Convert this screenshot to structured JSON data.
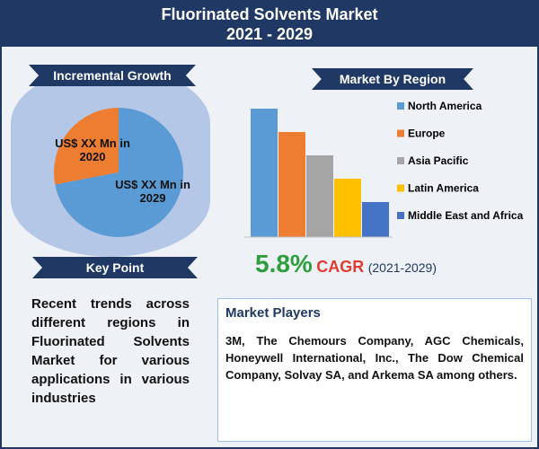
{
  "header": {
    "title": "Fluorinated Solvents Market",
    "subtitle": "2021 - 2029"
  },
  "incremental_growth": {
    "heading": "Incremental Growth",
    "chart_data": {
      "type": "pie",
      "labels": [
        "US$ XX Mn in 2020",
        "US$ XX Mn in 2029"
      ],
      "values": [
        28,
        72
      ],
      "colors": [
        "#ed7d31",
        "#5b9bd5"
      ]
    }
  },
  "key_point": {
    "heading": "Key Point",
    "text": "Recent trends across different regions in Fluorinated Solvents Market for various applications in various industries"
  },
  "market_by_region": {
    "heading": "Market By Region",
    "chart_data": {
      "type": "bar",
      "categories": [
        "North America",
        "Europe",
        "Asia Pacific",
        "Latin America",
        "Middle East and Africa"
      ],
      "values": [
        143,
        117,
        91,
        65,
        39
      ],
      "colors": [
        "#5b9bd5",
        "#ed7d31",
        "#a5a5a5",
        "#ffc000",
        "#4472c4"
      ]
    }
  },
  "cagr": {
    "value": "5.8%",
    "label": "CAGR",
    "period": "(2021-2029)"
  },
  "market_players": {
    "heading": "Market Players",
    "text": "3M, The Chemours Company, AGC Chemicals, Honeywell International, Inc., The Dow Chemical Company, Solvay SA, and Arkema SA among others."
  }
}
